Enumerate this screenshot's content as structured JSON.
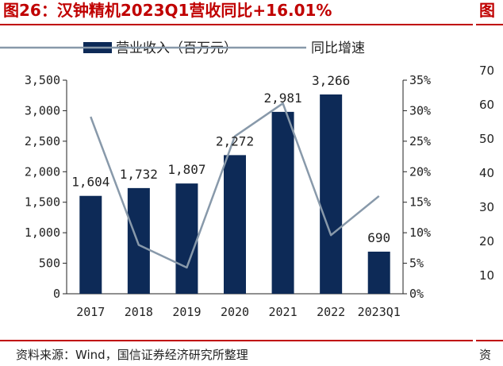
{
  "header": {
    "title": "图26：汉钟精机2023Q1营收同比+16.01%"
  },
  "footer": {
    "source": "资料来源：Wind，国信证券经济研究所整理"
  },
  "right_panel": {
    "title_fragment": "图",
    "tick_fragments": [
      "70",
      "60",
      "50",
      "40",
      "30",
      "20",
      "10"
    ],
    "source_fragment": "资"
  },
  "colors": {
    "bar": "#0d2a57",
    "line": "#8899aa",
    "accent": "#c00000"
  },
  "chart_data": {
    "type": "bar",
    "categories": [
      "2017",
      "2018",
      "2019",
      "2020",
      "2021",
      "2022",
      "2023Q1"
    ],
    "series": [
      {
        "name": "营业收入（百万元）",
        "type": "bar",
        "axis": "left",
        "values": [
          1604,
          1732,
          1807,
          2272,
          2981,
          3266,
          690
        ],
        "labels": [
          "1,604",
          "1,732",
          "1,807",
          "2,272",
          "2,981",
          "3,266",
          "690"
        ]
      },
      {
        "name": "同比增速",
        "type": "line",
        "axis": "right",
        "values": [
          29,
          8,
          4.3,
          25.8,
          31.2,
          9.6,
          16.01
        ]
      }
    ],
    "y_left": {
      "min": 0,
      "max": 3500,
      "ticks": [
        "0",
        "500",
        "1,000",
        "1,500",
        "2,000",
        "2,500",
        "3,000",
        "3,500"
      ]
    },
    "y_right": {
      "min": 0,
      "max": 35,
      "ticks": [
        "0%",
        "5%",
        "10%",
        "15%",
        "20%",
        "25%",
        "30%",
        "35%"
      ]
    },
    "legend": "top"
  }
}
